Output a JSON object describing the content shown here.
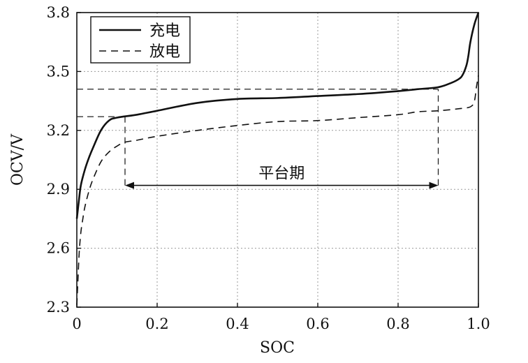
{
  "chart_data": {
    "type": "line",
    "title": "",
    "xlabel": "SOC",
    "ylabel": "OCV/V",
    "xlim": [
      0,
      1.0
    ],
    "ylim": [
      2.3,
      3.8
    ],
    "x_ticks": [
      0,
      0.2,
      0.4,
      0.6,
      0.8,
      1.0
    ],
    "x_tick_labels": [
      "0",
      "0.2",
      "0.4",
      "0.6",
      "0.8",
      "1.0"
    ],
    "y_ticks": [
      2.3,
      2.6,
      2.9,
      3.2,
      3.5,
      3.8
    ],
    "y_tick_labels": [
      "2.3",
      "2.6",
      "2.9",
      "3.2",
      "3.5",
      "3.8"
    ],
    "grid": "dotted",
    "legend": {
      "position": "top-left",
      "entries": [
        {
          "label": "充电",
          "style": "solid"
        },
        {
          "label": "放电",
          "style": "dashed"
        }
      ]
    },
    "series": [
      {
        "name": "充电",
        "style": "solid",
        "x": [
          0,
          0.005,
          0.01,
          0.02,
          0.03,
          0.04,
          0.06,
          0.08,
          0.1,
          0.15,
          0.2,
          0.3,
          0.4,
          0.5,
          0.6,
          0.7,
          0.8,
          0.85,
          0.9,
          0.93,
          0.95,
          0.96,
          0.97,
          0.975,
          0.98,
          0.99,
          1.0
        ],
        "y": [
          2.75,
          2.84,
          2.92,
          3.0,
          3.06,
          3.11,
          3.2,
          3.25,
          3.265,
          3.28,
          3.3,
          3.34,
          3.36,
          3.365,
          3.375,
          3.385,
          3.4,
          3.41,
          3.42,
          3.44,
          3.46,
          3.48,
          3.53,
          3.58,
          3.65,
          3.74,
          3.8
        ]
      },
      {
        "name": "放电",
        "style": "dashed",
        "x": [
          0,
          0.003,
          0.006,
          0.01,
          0.015,
          0.02,
          0.03,
          0.04,
          0.06,
          0.08,
          0.1,
          0.12,
          0.15,
          0.2,
          0.3,
          0.4,
          0.5,
          0.6,
          0.7,
          0.8,
          0.85,
          0.9,
          0.95,
          0.98,
          0.99,
          0.995,
          1.0
        ],
        "y": [
          2.31,
          2.45,
          2.58,
          2.68,
          2.75,
          2.81,
          2.89,
          2.95,
          3.04,
          3.09,
          3.12,
          3.14,
          3.15,
          3.17,
          3.2,
          3.225,
          3.245,
          3.25,
          3.265,
          3.28,
          3.295,
          3.3,
          3.31,
          3.32,
          3.35,
          3.42,
          3.48
        ]
      }
    ],
    "reference_lines": {
      "horizontal": [
        {
          "y": 3.41,
          "x_from": 0,
          "x_to": 0.9
        },
        {
          "y": 3.27,
          "x_from": 0,
          "x_to": 0.12
        }
      ],
      "vertical": [
        {
          "x": 0.12,
          "y_from": 2.92,
          "y_to": 3.27
        },
        {
          "x": 0.9,
          "y_from": 2.92,
          "y_to": 3.41
        }
      ]
    },
    "annotation": {
      "label": "平台期",
      "x_from": 0.12,
      "x_to": 0.9,
      "y": 2.92
    }
  }
}
